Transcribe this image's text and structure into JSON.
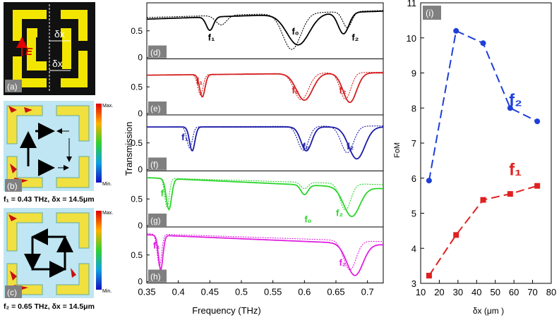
{
  "panels": {
    "a": {
      "tag": "(a)",
      "efield": "E",
      "delta1": "δx",
      "delta2": "δx"
    },
    "b": {
      "tag": "(b)",
      "caption": "f₁ = 0.43 THz, δx = 14.5μm",
      "cb_max": "Max.",
      "cb_min": "Min."
    },
    "c": {
      "tag": "(c)",
      "caption": "f₂ = 0.65 THz, δx = 14.5μm",
      "cb_max": "Max.",
      "cb_min": "Min."
    }
  },
  "transmission": {
    "ylabel": "Transmission",
    "xlabel": "Frequency (THz)",
    "xticks": [
      "0.35",
      "0.4",
      "0.45",
      "0.5",
      "0.55",
      "0.6",
      "0.65",
      "0.7"
    ],
    "xlim": [
      0.35,
      0.725
    ],
    "ylim": [
      0,
      1
    ],
    "yticks": [
      "0",
      "0.5"
    ],
    "subpanels": [
      {
        "tag": "(d)",
        "color": "#000000",
        "labels": [
          {
            "text": "f₁",
            "f": 0.447,
            "t": 0.32
          },
          {
            "text": "f₀",
            "f": 0.58,
            "t": 0.43
          },
          {
            "text": "f₂",
            "f": 0.675,
            "t": 0.32
          }
        ],
        "solid": {
          "d1": 0.45,
          "a1": 0.25,
          "w1": 0.008,
          "d0": 0.59,
          "a0": 0.58,
          "w0": 0.025,
          "d2": 0.662,
          "a2": 0.4,
          "w2": 0.012,
          "base": 0.72,
          "slope": 0.4
        },
        "dotted": {
          "d1": 0.468,
          "a1": 0.18,
          "w1": 0.012,
          "d0": 0.58,
          "a0": 0.68,
          "w0": 0.02,
          "d2": 0.668,
          "a2": 0.3,
          "w2": 0.01,
          "base": 0.75,
          "slope": 0.35
        }
      },
      {
        "tag": "(e)",
        "color": "#d32020",
        "labels": [
          {
            "text": "f₁",
            "f": 0.428,
            "t": 0.55
          },
          {
            "text": "f₀",
            "f": 0.58,
            "t": 0.38
          },
          {
            "text": "f₂",
            "f": 0.655,
            "t": 0.38
          }
        ],
        "solid": {
          "d1": 0.438,
          "a1": 0.42,
          "w1": 0.006,
          "d0": 0.6,
          "a0": 0.5,
          "w0": 0.018,
          "d2": 0.672,
          "a2": 0.55,
          "w2": 0.015,
          "base": 0.72,
          "slope": 0.12
        },
        "dotted": {
          "d1": 0.435,
          "a1": 0.38,
          "w1": 0.006,
          "d0": 0.595,
          "a0": 0.5,
          "w0": 0.016,
          "d2": 0.665,
          "a2": 0.5,
          "w2": 0.012,
          "base": 0.72,
          "slope": 0.15
        }
      },
      {
        "tag": "(f)",
        "color": "#1a1aa8",
        "labels": [
          {
            "text": "f₁",
            "f": 0.405,
            "t": 0.55
          },
          {
            "text": "f₀",
            "f": 0.597,
            "t": 0.38
          },
          {
            "text": "f₂",
            "f": 0.667,
            "t": 0.38
          }
        ],
        "solid": {
          "d1": 0.422,
          "a1": 0.45,
          "w1": 0.006,
          "d0": 0.603,
          "a0": 0.45,
          "w0": 0.012,
          "d2": 0.683,
          "a2": 0.6,
          "w2": 0.018,
          "base": 0.8,
          "slope": 0.0
        },
        "dotted": {
          "d1": 0.418,
          "a1": 0.4,
          "w1": 0.006,
          "d0": 0.598,
          "a0": 0.45,
          "w0": 0.012,
          "d2": 0.668,
          "a2": 0.5,
          "w2": 0.014,
          "base": 0.8,
          "slope": 0.05
        }
      },
      {
        "tag": "(g)",
        "color": "#2bd52b",
        "labels": [
          {
            "text": "f₁",
            "f": 0.372,
            "t": 0.55
          },
          {
            "text": "f₀",
            "f": 0.6,
            "t": 0.06
          },
          {
            "text": "f₂",
            "f": 0.65,
            "t": 0.18
          }
        ],
        "solid": {
          "d1": 0.385,
          "a1": 0.58,
          "w1": 0.006,
          "d0": 0.6,
          "a0": 0.18,
          "w0": 0.008,
          "d2": 0.675,
          "a2": 0.55,
          "w2": 0.018,
          "base": 0.9,
          "slope": -0.55
        },
        "dotted": {
          "d1": 0.382,
          "a1": 0.55,
          "w1": 0.005,
          "d0": 0.6,
          "a0": 0.12,
          "w0": 0.008,
          "d2": 0.665,
          "a2": 0.5,
          "w2": 0.012,
          "base": 0.9,
          "slope": -0.35
        }
      },
      {
        "tag": "(h)",
        "color": "#e020e0",
        "labels": [
          {
            "text": "f₁",
            "f": 0.36,
            "t": 0.62
          },
          {
            "text": "f₂",
            "f": 0.655,
            "t": 0.3
          }
        ],
        "solid": {
          "d1": 0.372,
          "a1": 0.65,
          "w1": 0.005,
          "d0": 0.6,
          "a0": 0.0,
          "w0": 0.01,
          "d2": 0.68,
          "a2": 0.6,
          "w2": 0.018,
          "base": 0.88,
          "slope": -0.5
        },
        "dotted": {
          "d1": 0.37,
          "a1": 0.6,
          "w1": 0.005,
          "d0": 0.6,
          "a0": 0.0,
          "w0": 0.01,
          "d2": 0.672,
          "a2": 0.55,
          "w2": 0.014,
          "base": 0.9,
          "slope": -0.4
        }
      }
    ]
  },
  "chart_data": {
    "type": "line",
    "tag": "(i)",
    "title": "",
    "xlabel": "δx (μm )",
    "ylabel": "FoM",
    "xlim": [
      10,
      80
    ],
    "ylim": [
      3,
      11
    ],
    "xticks": [
      10,
      20,
      30,
      40,
      50,
      60,
      70,
      80
    ],
    "yticks": [
      3,
      4,
      5,
      6,
      7,
      8,
      9,
      10,
      11
    ],
    "series": [
      {
        "name": "f₂",
        "color": "#1f3fd8",
        "marker": "circle",
        "x": [
          14.5,
          29,
          43.5,
          58,
          72.5
        ],
        "y": [
          5.93,
          10.2,
          9.85,
          8.0,
          7.62
        ]
      },
      {
        "name": "f₁",
        "color": "#e02020",
        "marker": "square",
        "x": [
          14.5,
          29,
          43.5,
          58,
          72.5
        ],
        "y": [
          3.22,
          4.38,
          5.38,
          5.55,
          5.78
        ]
      }
    ]
  }
}
